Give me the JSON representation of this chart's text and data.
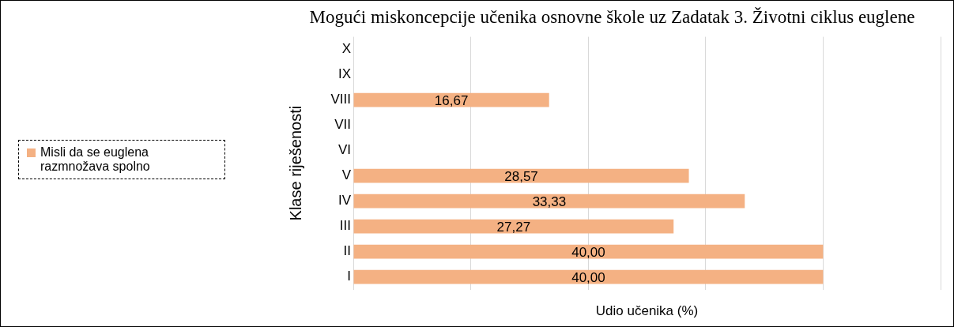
{
  "chart_data": {
    "type": "bar",
    "orientation": "horizontal",
    "title": "Mogući miskoncepcije učenika osnovne škole uz Zadatak 3. Životni ciklus euglene",
    "xlabel": "Udio učenika (%)",
    "ylabel": "Klase riješenosti",
    "categories": [
      "X",
      "IX",
      "VIII",
      "VII",
      "VI",
      "V",
      "IV",
      "III",
      "II",
      "I"
    ],
    "series": [
      {
        "name": "Misli da se euglena razmnožava spolno",
        "color": "#f4b183",
        "values": [
          null,
          null,
          16.67,
          null,
          null,
          28.57,
          33.33,
          27.27,
          40,
          40
        ],
        "value_labels": [
          null,
          null,
          "16,67",
          null,
          null,
          "28,57",
          "33,33",
          "27,27",
          "40,00",
          "40,00"
        ]
      }
    ],
    "xlim": [
      0,
      50
    ],
    "xticks": [
      {
        "value": 0,
        "label": null
      },
      {
        "value": 10,
        "label": null
      },
      {
        "value": 20,
        "label": null
      },
      {
        "value": 30,
        "label": null
      },
      {
        "value": 40,
        "label": null
      },
      {
        "value": 50,
        "label": null
      }
    ],
    "tick_labels": "y",
    "grid": "x",
    "legend": "left"
  }
}
